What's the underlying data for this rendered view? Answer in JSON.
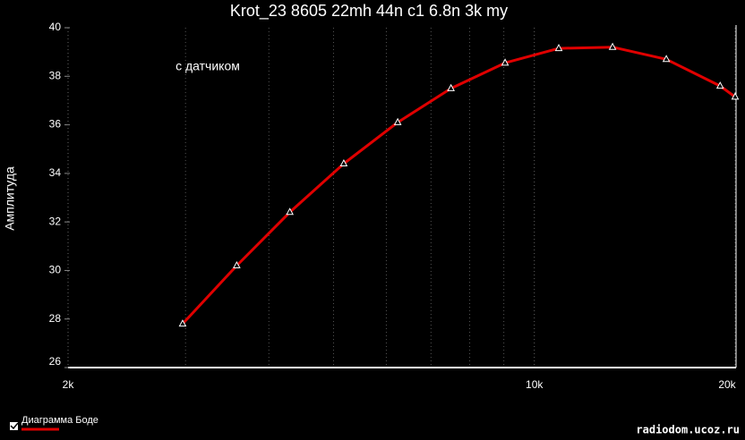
{
  "chart_data": {
    "type": "line",
    "title": "Krot_23 8605 22mh 44n c1 6.8n  3k my",
    "ylabel": "Амплитуда",
    "annotation": "с датчиком",
    "watermark": "radiodom.ucoz.ru",
    "xscale": "log",
    "xlim": [
      2000,
      20000
    ],
    "ylim": [
      26,
      40
    ],
    "xticks": [
      {
        "value": 2000,
        "label": "2k"
      },
      {
        "value": 10000,
        "label": "10k"
      },
      {
        "value": 20000,
        "label": "20k"
      }
    ],
    "xminorticks": [
      3000,
      4000,
      5000,
      6000,
      7000,
      8000,
      9000
    ],
    "yticks": [
      26,
      28,
      30,
      32,
      34,
      36,
      38,
      40
    ],
    "grid": true,
    "legend": "bottom-left",
    "x": [
      2970,
      3580,
      4300,
      5180,
      6240,
      7500,
      9040,
      10880,
      13100,
      15770,
      18990,
      20000
    ],
    "series": [
      {
        "name": "Диаграмма Боде",
        "color": "#e00000",
        "values": [
          27.8,
          30.2,
          32.4,
          34.4,
          36.1,
          37.5,
          38.55,
          39.15,
          39.2,
          38.7,
          37.6,
          37.15
        ]
      }
    ]
  }
}
